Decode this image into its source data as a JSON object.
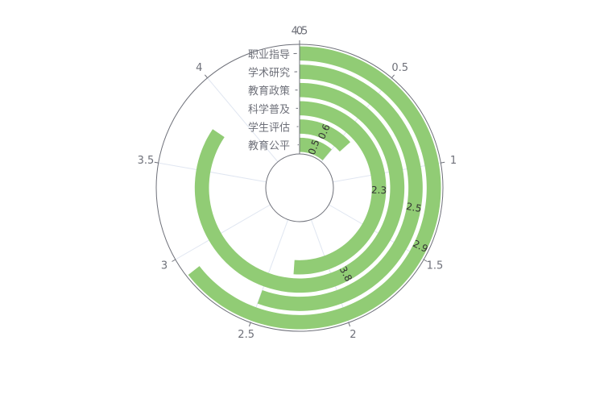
{
  "chart_data": {
    "type": "bar",
    "polar": true,
    "categories": [
      "教育公平",
      "学生评估",
      "科学普及",
      "教育政策",
      "学术研究",
      "职业指导"
    ],
    "values": [
      0.5,
      0.6,
      2.3,
      3.8,
      2.5,
      2.9
    ],
    "value_axis": {
      "min": 0,
      "max": 4.5,
      "ticks": [
        "0",
        "0.5",
        "1",
        "1.5",
        "2",
        "2.5",
        "3",
        "3.5",
        "4",
        "4.5"
      ]
    },
    "grid": true,
    "legend": "none",
    "colors": {
      "bar": "#91cc75",
      "axis": "#6e7079",
      "grid": "#e0e6f1"
    }
  }
}
